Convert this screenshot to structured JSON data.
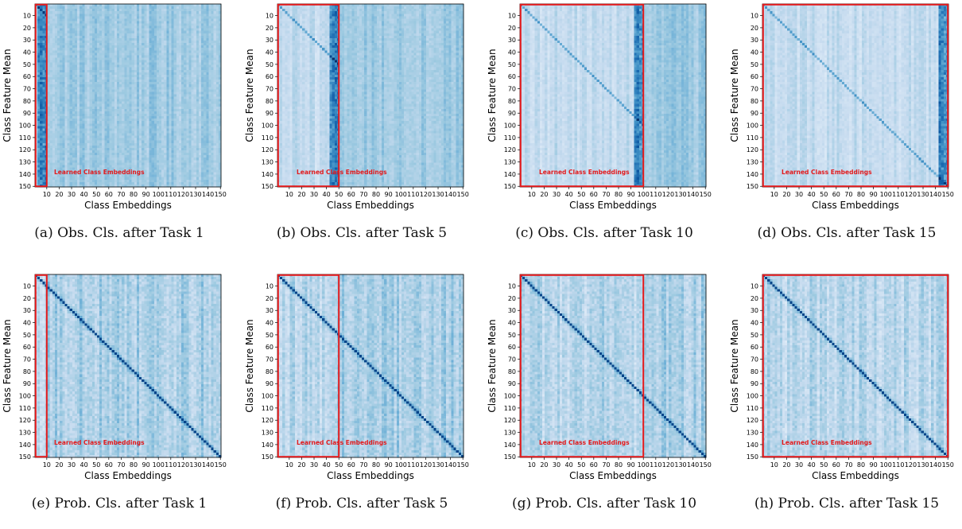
{
  "figure": {
    "colormap": [
      "#f7fbff",
      "#deebf7",
      "#c6dbef",
      "#9ecae1",
      "#6baed6",
      "#4292c6",
      "#2171b5",
      "#08519c",
      "#08306b"
    ],
    "highlight_color": "#e31a1c",
    "xlabel": "Class Embeddings",
    "ylabel": "Class Feature Mean",
    "annotation": "Learned Class Embeddings",
    "x_ticks": [
      10,
      20,
      30,
      40,
      50,
      60,
      70,
      80,
      90,
      100,
      110,
      120,
      130,
      140,
      150
    ],
    "y_ticks": [
      10,
      20,
      30,
      40,
      50,
      60,
      70,
      80,
      90,
      100,
      110,
      120,
      130,
      140,
      150
    ]
  },
  "chart_data": [
    {
      "type": "heatmap",
      "panel": "a",
      "caption": "(a) Obs. Cls. after Task 1",
      "learned_classes": 10,
      "diagonal": "weak",
      "x_range": [
        1,
        150
      ],
      "y_range": [
        1,
        150
      ],
      "xlabel": "Class Embeddings",
      "ylabel": "Class Feature Mean",
      "annotation": "Learned Class Embeddings"
    },
    {
      "type": "heatmap",
      "panel": "b",
      "caption": "(b) Obs. Cls. after Task 5",
      "learned_classes": 50,
      "diagonal": "weak",
      "x_range": [
        1,
        150
      ],
      "y_range": [
        1,
        150
      ],
      "xlabel": "Class Embeddings",
      "ylabel": "Class Feature Mean",
      "annotation": "Learned Class Embeddings"
    },
    {
      "type": "heatmap",
      "panel": "c",
      "caption": "(c) Obs. Cls. after Task 10",
      "learned_classes": 100,
      "diagonal": "weak",
      "x_range": [
        1,
        150
      ],
      "y_range": [
        1,
        150
      ],
      "xlabel": "Class Embeddings",
      "ylabel": "Class Feature Mean",
      "annotation": "Learned Class Embeddings"
    },
    {
      "type": "heatmap",
      "panel": "d",
      "caption": "(d) Obs. Cls. after Task 15",
      "learned_classes": 150,
      "diagonal": "weak",
      "x_range": [
        1,
        150
      ],
      "y_range": [
        1,
        150
      ],
      "xlabel": "Class Embeddings",
      "ylabel": "Class Feature Mean",
      "annotation": "Learned Class Embeddings"
    },
    {
      "type": "heatmap",
      "panel": "e",
      "caption": "(e) Prob. Cls. after Task 1",
      "learned_classes": 10,
      "diagonal": "strong",
      "x_range": [
        1,
        150
      ],
      "y_range": [
        1,
        150
      ],
      "xlabel": "Class Embeddings",
      "ylabel": "Class Feature Mean",
      "annotation": "Learned Class Embeddings"
    },
    {
      "type": "heatmap",
      "panel": "f",
      "caption": "(f) Prob. Cls. after Task 5",
      "learned_classes": 50,
      "diagonal": "strong",
      "x_range": [
        1,
        150
      ],
      "y_range": [
        1,
        150
      ],
      "xlabel": "Class Embeddings",
      "ylabel": "Class Feature Mean",
      "annotation": "Learned Class Embeddings"
    },
    {
      "type": "heatmap",
      "panel": "g",
      "caption": "(g) Prob. Cls. after Task 10",
      "learned_classes": 100,
      "diagonal": "strong",
      "x_range": [
        1,
        150
      ],
      "y_range": [
        1,
        150
      ],
      "xlabel": "Class Embeddings",
      "ylabel": "Class Feature Mean",
      "annotation": "Learned Class Embeddings"
    },
    {
      "type": "heatmap",
      "panel": "h",
      "caption": "(h) Prob. Cls. after Task 15",
      "learned_classes": 150,
      "diagonal": "strong",
      "x_range": [
        1,
        150
      ],
      "y_range": [
        1,
        150
      ],
      "xlabel": "Class Embeddings",
      "ylabel": "Class Feature Mean",
      "annotation": "Learned Class Embeddings"
    }
  ]
}
